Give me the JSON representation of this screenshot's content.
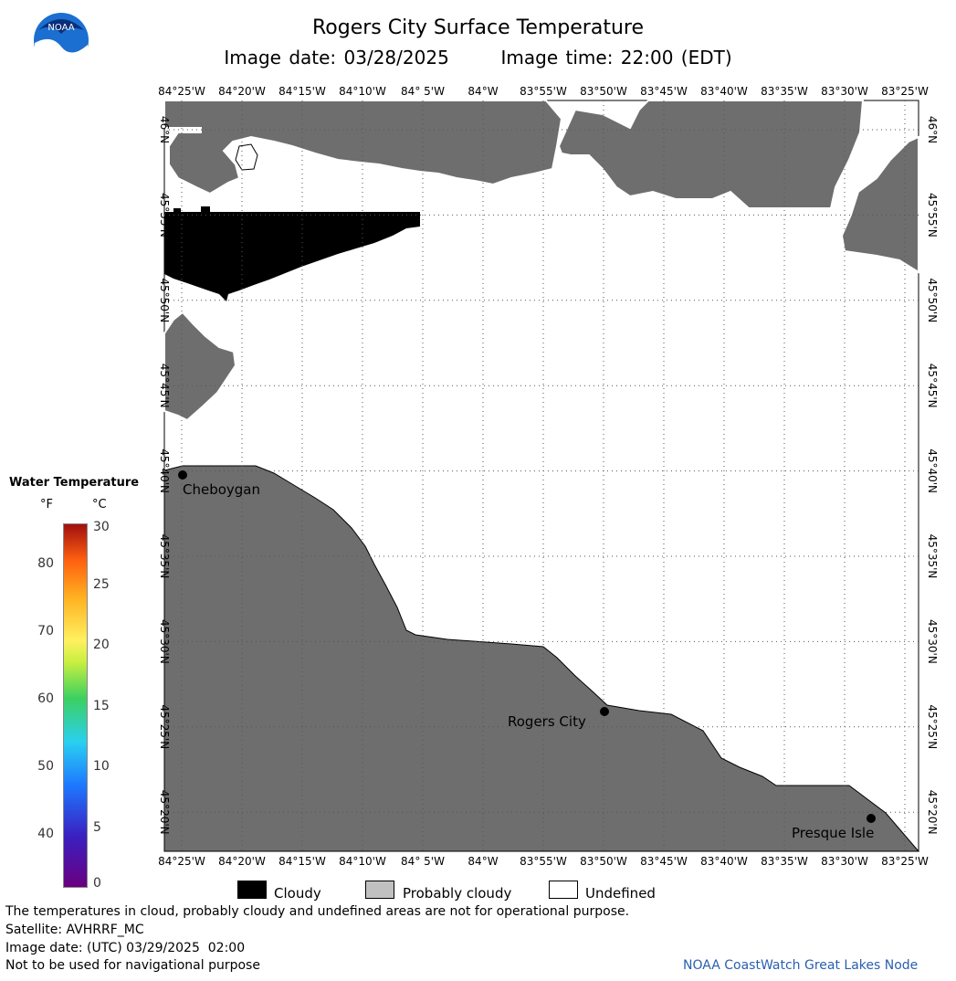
{
  "header": {
    "title": "Rogers City Surface Temperature",
    "image_date_label": "Image date: 03/28/2025",
    "image_time_label": "Image time: 22:00 (EDT)",
    "logo_text": "NOAA"
  },
  "map": {
    "lon_labels": [
      "84°25'W",
      "84°20'W",
      "84°15'W",
      "84°10'W",
      "84° 5'W",
      "84°W",
      "83°55'W",
      "83°50'W",
      "83°45'W",
      "83°40'W",
      "83°35'W",
      "83°30'W",
      "83°25'W"
    ],
    "lat_labels": [
      "46°N",
      "45°55'N",
      "45°50'N",
      "45°45'N",
      "45°40'N",
      "45°35'N",
      "45°30'N",
      "45°25'N",
      "45°20'N"
    ],
    "cities": [
      {
        "name": "Cheboygan"
      },
      {
        "name": "Rogers City"
      },
      {
        "name": "Presque Isle"
      }
    ],
    "colors": {
      "land": "#6e6e6e",
      "cloudy": "#000000",
      "probably_cloudy": "#c0c0c0",
      "undefined": "#ffffff"
    }
  },
  "legend": {
    "title": "Water Temperature",
    "unit_f": "°F",
    "unit_c": "°C",
    "f_ticks": [
      "80",
      "70",
      "60",
      "50",
      "40"
    ],
    "c_ticks": [
      "30",
      "25",
      "20",
      "15",
      "10",
      "5",
      "0"
    ]
  },
  "key": {
    "cloudy": "Cloudy",
    "probably_cloudy": "Probably cloudy",
    "undefined": "Undefined"
  },
  "footer": {
    "disclaimer": "The temperatures in cloud, probably cloudy and undefined areas are not for operational purpose.",
    "satellite": "Satellite: AVHRRF_MC",
    "utc_date": "Image date: (UTC) 03/29/2025  02:00",
    "nav_warning": "Not to be used for navigational purpose",
    "credit": "NOAA CoastWatch Great Lakes Node"
  }
}
